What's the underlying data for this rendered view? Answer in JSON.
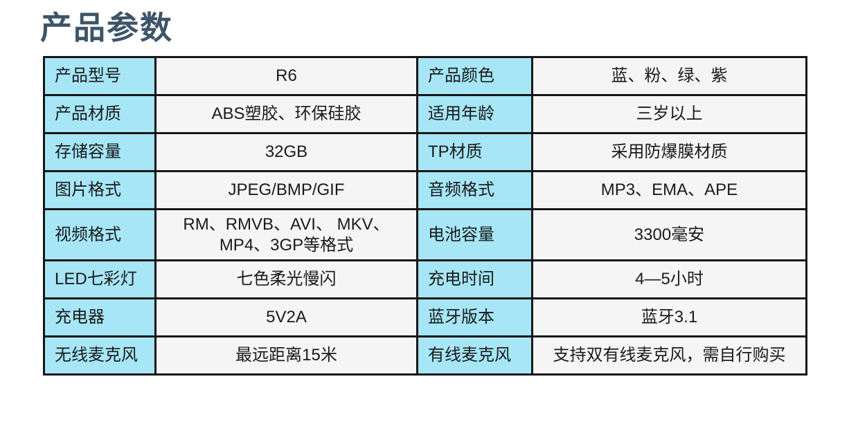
{
  "page": {
    "title": "产品参数"
  },
  "colors": {
    "title_text": "#3e5568",
    "label_cell_bg": "#a6e6f7",
    "value_cell_bg": "#f5f5f5",
    "border": "#161616",
    "cell_text": "#1a1a1a",
    "page_bg": "#ffffff"
  },
  "table": {
    "rows": [
      {
        "label_left": "产品型号",
        "value_left": "R6",
        "label_right": "产品颜色",
        "value_right": "蓝、粉、绿、紫"
      },
      {
        "label_left": "产品材质",
        "value_left": "ABS塑胶、环保硅胶",
        "label_right": "适用年龄",
        "value_right": "三岁以上"
      },
      {
        "label_left": "存储容量",
        "value_left": "32GB",
        "label_right": "TP材质",
        "value_right": "采用防爆膜材质"
      },
      {
        "label_left": "图片格式",
        "value_left": "JPEG/BMP/GIF",
        "label_right": "音频格式",
        "value_right": "MP3、EMA、APE"
      },
      {
        "label_left": "视频格式",
        "value_left": "RM、RMVB、AVI、 MKV、MP4、3GP等格式",
        "label_right": "电池容量",
        "value_right": "3300毫安"
      },
      {
        "label_left": "LED七彩灯",
        "value_left": "七色柔光慢闪",
        "label_right": "充电时间",
        "value_right": "4—5小时"
      },
      {
        "label_left": "充电器",
        "value_left": "5V2A",
        "label_right": "蓝牙版本",
        "value_right": "蓝牙3.1"
      },
      {
        "label_left": "无线麦克风",
        "value_left": "最远距离15米",
        "label_right": "有线麦克风",
        "value_right": "支持双有线麦克风，需自行购买"
      }
    ]
  }
}
